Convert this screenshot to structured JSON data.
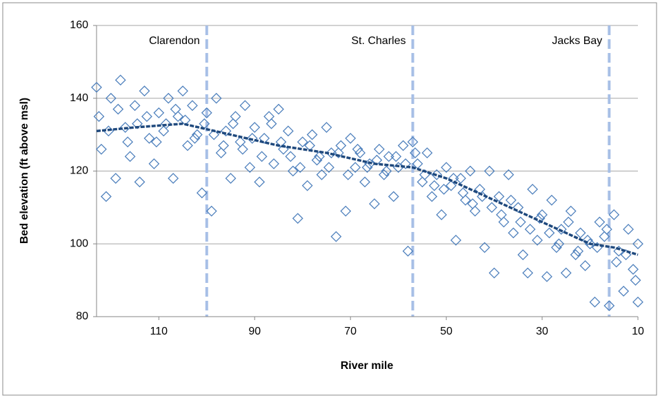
{
  "chart_data": {
    "type": "scatter",
    "xlabel": "River mile",
    "ylabel": "Bed elevation (ft above msl)",
    "xlim": [
      123,
      10
    ],
    "xticks": [
      110,
      90,
      70,
      50,
      30,
      10
    ],
    "ylim": [
      80,
      160
    ],
    "yticks": [
      80,
      100,
      120,
      140,
      160
    ],
    "grid": true,
    "color": "#4f81bd",
    "x": [
      123,
      122,
      121,
      120,
      119,
      118,
      117,
      116,
      115,
      114,
      113,
      112,
      111,
      110,
      109,
      108,
      107,
      106,
      105,
      104,
      103,
      102,
      101,
      100,
      99,
      98,
      97,
      96,
      95,
      94,
      93,
      92,
      91,
      90,
      89,
      88,
      87,
      86,
      85,
      84,
      83,
      82,
      81,
      80,
      79,
      78,
      77,
      76,
      75,
      74,
      73,
      72,
      71,
      70,
      69,
      68,
      67,
      66,
      65,
      64,
      63,
      62,
      61,
      60,
      59,
      58,
      57,
      56,
      55,
      54,
      53,
      52,
      51,
      50,
      49,
      48,
      47,
      46,
      45,
      44,
      43,
      42,
      41,
      40,
      39,
      38,
      37,
      36,
      35,
      34,
      33,
      32,
      31,
      30,
      29,
      28,
      27,
      26,
      25,
      24,
      23,
      22,
      21,
      20,
      19,
      18,
      17,
      16,
      15,
      14,
      13,
      12,
      11,
      10,
      10,
      122.5,
      120.5,
      118.5,
      116.5,
      114.5,
      112.5,
      110.5,
      108.5,
      106.5,
      104.5,
      102.5,
      100.5,
      98.5,
      96.5,
      94.5,
      92.5,
      90.5,
      88.5,
      86.5,
      84.5,
      82.5,
      80.5,
      78.5,
      76.5,
      74.5,
      72.5,
      70.5,
      68.5,
      66.5,
      64.5,
      62.5,
      60.5,
      58.5,
      56.5,
      54.5,
      52.5,
      50.5,
      48.5,
      46.5,
      44.5,
      42.5,
      40.5,
      38.5,
      36.5,
      34.5,
      32.5,
      30.5,
      28.5,
      26.5,
      24.5,
      22.5,
      20.5,
      18.5,
      16.5,
      14.5,
      12.5,
      10.5
    ],
    "values": [
      143,
      126,
      113,
      140,
      118,
      145,
      132,
      124,
      138,
      117,
      142,
      129,
      122,
      136,
      131,
      140,
      118,
      135,
      142,
      127,
      138,
      130,
      114,
      136,
      109,
      140,
      125,
      131,
      118,
      135,
      128,
      138,
      121,
      132,
      117,
      129,
      135,
      122,
      137,
      126,
      131,
      120,
      107,
      128,
      116,
      130,
      123,
      119,
      132,
      125,
      102,
      127,
      109,
      129,
      121,
      125,
      117,
      122,
      111,
      126,
      119,
      124,
      113,
      121,
      127,
      98,
      128,
      122,
      117,
      125,
      113,
      119,
      108,
      121,
      116,
      101,
      118,
      112,
      120,
      109,
      115,
      99,
      120,
      92,
      113,
      106,
      119,
      103,
      110,
      97,
      92,
      115,
      101,
      108,
      91,
      112,
      99,
      104,
      92,
      109,
      97,
      103,
      94,
      100,
      84,
      106,
      102,
      83,
      108,
      98,
      87,
      104,
      93,
      100,
      84,
      135,
      131,
      137,
      128,
      133,
      135,
      128,
      133,
      137,
      134,
      129,
      133,
      130,
      127,
      133,
      126,
      129,
      124,
      133,
      128,
      124,
      121,
      127,
      124,
      121,
      125,
      119,
      126,
      121,
      123,
      120,
      124,
      122,
      125,
      119,
      116,
      115,
      118,
      114,
      111,
      113,
      110,
      108,
      112,
      106,
      104,
      107,
      103,
      100,
      106,
      98,
      101,
      99,
      104,
      95,
      97,
      90
    ],
    "trend": {
      "color": "#1f497d",
      "x": [
        123,
        115,
        105,
        95,
        85,
        75,
        65,
        57,
        50,
        40,
        30,
        20,
        15,
        10
      ],
      "values": [
        131,
        132,
        133,
        130,
        127,
        125,
        122,
        121,
        118,
        112,
        106,
        100,
        99,
        97
      ]
    },
    "dividers": {
      "color": "#a7bfe6",
      "x": [
        100,
        57,
        16
      ],
      "labels": [
        "Clarendon",
        "St. Charles",
        "Jacks Bay"
      ]
    }
  }
}
